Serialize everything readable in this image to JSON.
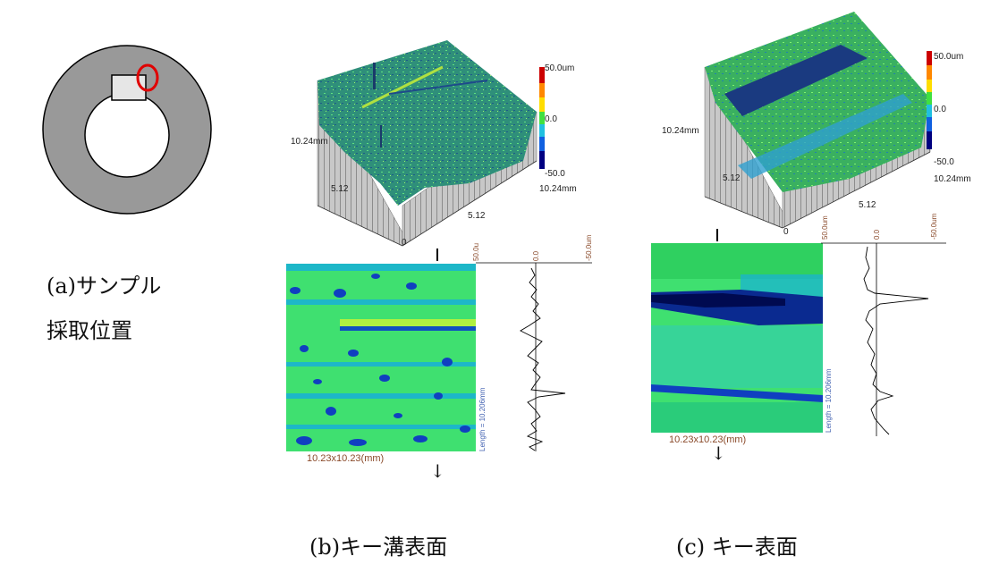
{
  "panel_a": {
    "caption_line1": "(a)サンプル",
    "caption_line2": "採取位置"
  },
  "panel_b": {
    "caption": "(b)キー溝表面",
    "axis_10_24_left": "10.24mm",
    "axis_5_12_left": "5.12",
    "axis_5_12_bottom": "5.12",
    "axis_10_24_right": "10.24mm",
    "axis_0": "0",
    "scale_top": "50.0um",
    "scale_mid": "0.0",
    "scale_bottom": "-50.0",
    "profile_scale_left": "50.0u",
    "profile_scale_mid": "0.0",
    "profile_scale_right": "-50.0um",
    "size_label": "10.23x10.23(mm)",
    "length_label": "Length = 10.206mm"
  },
  "panel_c": {
    "caption": "(c) キー表面",
    "axis_10_24_left": "10.24mm",
    "axis_5_12_left": "5.12",
    "axis_5_12_bottom": "5.12",
    "axis_10_24_right": "10.24mm",
    "axis_0": "0",
    "scale_top": "50.0um",
    "scale_mid": "0.0",
    "scale_bottom": "-50.0",
    "profile_scale_left": "50.0um",
    "profile_scale_mid": "0.0",
    "profile_scale_right": "-50.0um",
    "size_label": "10.23x10.23(mm)",
    "length_label": "Length = 10.206mm"
  },
  "colors": {
    "ring": "#999999",
    "highlight": "#e00000",
    "map_green": "#3fe070",
    "map_blue": "#1040c0",
    "surface_green": "#2a9a5a"
  }
}
